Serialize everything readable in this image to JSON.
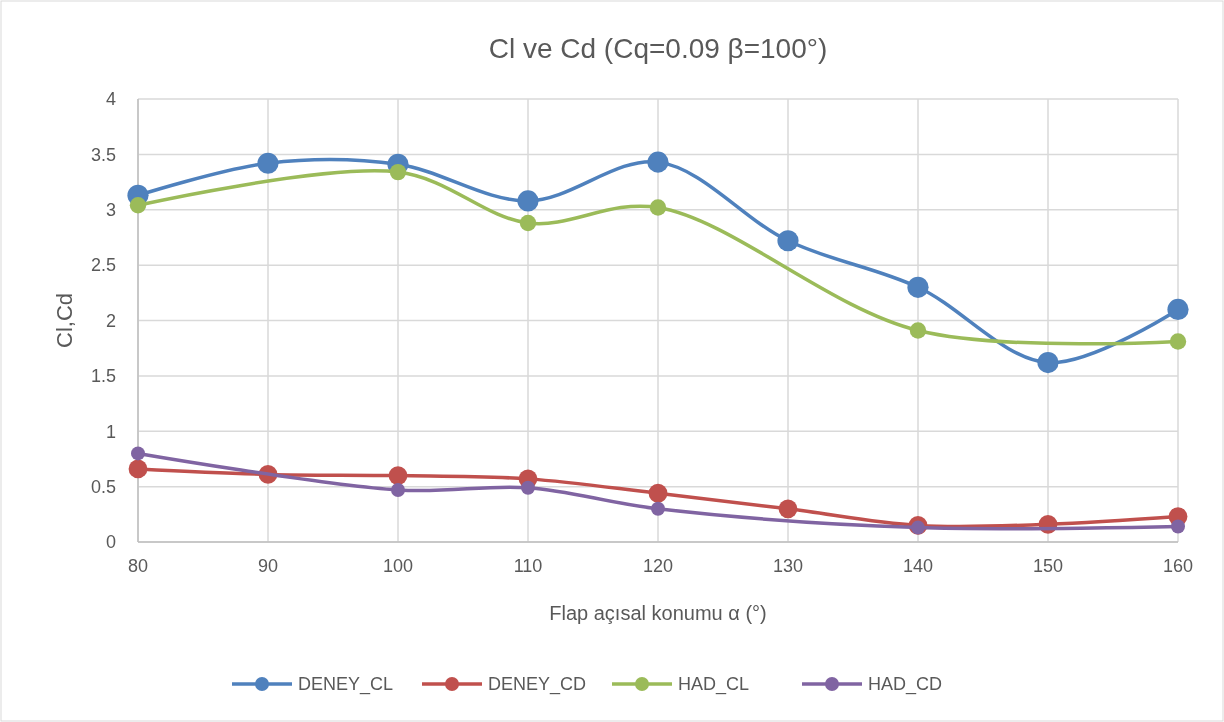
{
  "chart_data": {
    "type": "line",
    "title": "Cl ve Cd (Cq=0.09  β=100°)",
    "xlabel": "Flap açısal konumu  α (°)",
    "ylabel": "Cl,Cd",
    "xlim": [
      80,
      160
    ],
    "xticks": [
      80,
      90,
      100,
      110,
      120,
      130,
      140,
      150,
      160
    ],
    "ylim": [
      0,
      4
    ],
    "yticks": [
      0,
      0.5,
      1,
      1.5,
      2,
      2.5,
      3,
      3.5,
      4
    ],
    "grid": true,
    "legend": "bottom",
    "marker": "circle",
    "line_style": "solid",
    "series": [
      {
        "name": "DENEY_CL",
        "color": "#4f81bd",
        "x": [
          80,
          90,
          100,
          110,
          120,
          130,
          140,
          150,
          160
        ],
        "values": [
          3.13,
          3.42,
          3.41,
          3.08,
          3.43,
          2.72,
          2.3,
          1.62,
          2.1
        ]
      },
      {
        "name": "DENEY_CD",
        "color": "#c0504d",
        "x": [
          80,
          90,
          100,
          110,
          120,
          130,
          140,
          150,
          160
        ],
        "values": [
          0.66,
          0.61,
          0.6,
          0.57,
          0.44,
          0.3,
          0.15,
          0.16,
          0.23
        ]
      },
      {
        "name": "HAD_CL",
        "color": "#9bbb59",
        "x": [
          80,
          100,
          110,
          120,
          140,
          160
        ],
        "values": [
          3.04,
          3.34,
          2.88,
          3.02,
          1.91,
          1.81
        ]
      },
      {
        "name": "HAD_CD",
        "color": "#8064a2",
        "x": [
          80,
          100,
          110,
          120,
          140,
          160
        ],
        "values": [
          0.8,
          0.47,
          0.49,
          0.3,
          0.13,
          0.14
        ]
      }
    ]
  }
}
